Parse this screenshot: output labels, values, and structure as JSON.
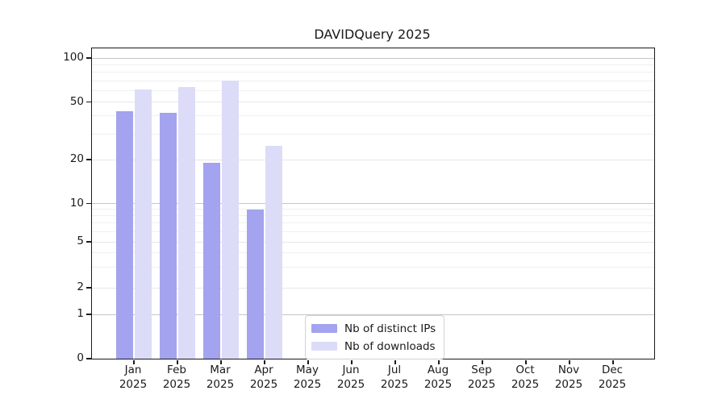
{
  "title": "DAVIDQuery 2025",
  "chart_data": {
    "type": "bar",
    "title": "DAVIDQuery 2025",
    "categories": [
      "Jan",
      "Feb",
      "Mar",
      "Apr",
      "May",
      "Jun",
      "Jul",
      "Aug",
      "Sep",
      "Oct",
      "Nov",
      "Dec"
    ],
    "category_year": "2025",
    "xticklabels": [
      "Jan 2025",
      "Feb 2025",
      "Mar 2025",
      "Apr 2025",
      "May 2025",
      "Jun 2025",
      "Jul 2025",
      "Aug 2025",
      "Sep 2025",
      "Oct 2025",
      "Nov 2025",
      "Dec 2025"
    ],
    "series": [
      {
        "name": "Nb of distinct IPs",
        "color": "#a3a3ef",
        "values": [
          43,
          42,
          19,
          9,
          null,
          null,
          null,
          null,
          null,
          null,
          null,
          null
        ]
      },
      {
        "name": "Nb of downloads",
        "color": "#dcdcf9",
        "values": [
          61,
          63,
          70,
          25,
          null,
          null,
          null,
          null,
          null,
          null,
          null,
          null
        ]
      }
    ],
    "yscale": "log above 1, linear 0-1",
    "ylim": [
      0,
      130
    ],
    "yticks": [
      0,
      1,
      2,
      5,
      10,
      20,
      50,
      100
    ],
    "major_gridlines": [
      1,
      10,
      100
    ],
    "mid_gridlines": [
      2,
      5,
      20,
      50
    ],
    "minor_gridlines": [
      3,
      4,
      6,
      7,
      8,
      9,
      30,
      40,
      60,
      70,
      80,
      90
    ],
    "grid": true,
    "legend_position": "lower center",
    "xlabel": "",
    "ylabel": ""
  },
  "colors": {
    "series_ips": "#a3a3ef",
    "series_downloads": "#dcdcf9",
    "grid_major": "#c6c6c6",
    "grid_mid": "#e7e7e7",
    "grid_minor": "#f0f0f0",
    "spine": "#1a1a1a",
    "text": "#1a1a1a",
    "legend_border": "#d2d2d2",
    "background": "#ffffff"
  }
}
